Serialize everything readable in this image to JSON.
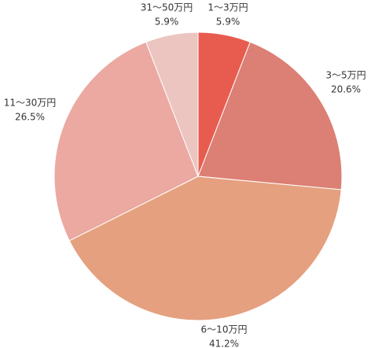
{
  "chart_data": {
    "type": "pie",
    "categories": [
      "1～3万円",
      "3～5万円",
      "6～10万円",
      "11～30万円",
      "31～50万円"
    ],
    "values": [
      5.9,
      20.6,
      41.2,
      26.5,
      5.9
    ],
    "value_labels": [
      "5.9%",
      "20.6%",
      "41.2%",
      "26.5%",
      "5.9%"
    ],
    "colors": [
      "#e85c4f",
      "#dc7f74",
      "#e5a07f",
      "#eba9a2",
      "#ecc5c0"
    ]
  }
}
